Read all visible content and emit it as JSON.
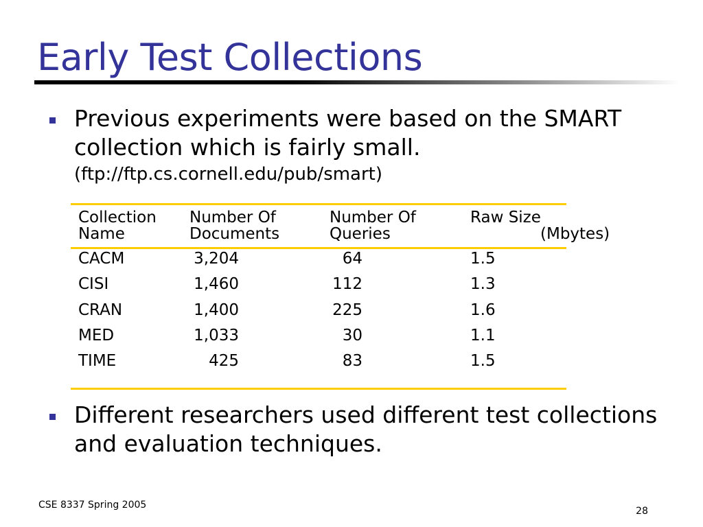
{
  "slide": {
    "title": "Early Test Collections",
    "bullets": [
      {
        "text": "Previous experiments were based on the SMART collection which is fairly small.",
        "subtext": "(ftp://ftp.cs.cornell.edu/pub/smart)"
      },
      {
        "text": "Different researchers used different test collections and evaluation techniques."
      }
    ],
    "table": {
      "headers": [
        [
          "Collection",
          "Name"
        ],
        [
          "Number Of",
          "Documents"
        ],
        [
          "Number Of",
          "Queries"
        ],
        [
          "Raw Size",
          "(Mbytes)"
        ]
      ],
      "rows": [
        [
          "CACM",
          "3,204",
          "64",
          "1.5"
        ],
        [
          "CISI",
          "1,460",
          "112",
          "1.3"
        ],
        [
          "CRAN",
          "1,400",
          "225",
          "1.6"
        ],
        [
          "MED",
          "1,033",
          "30",
          "1.1"
        ],
        [
          "TIME",
          "425",
          "83",
          "1.5"
        ]
      ]
    },
    "footer": {
      "course": "CSE 8337 Spring 2005",
      "page_number": "28"
    },
    "colors": {
      "title": "#333399",
      "bullet": "#333399",
      "table_rules": "#ffcc00"
    }
  }
}
